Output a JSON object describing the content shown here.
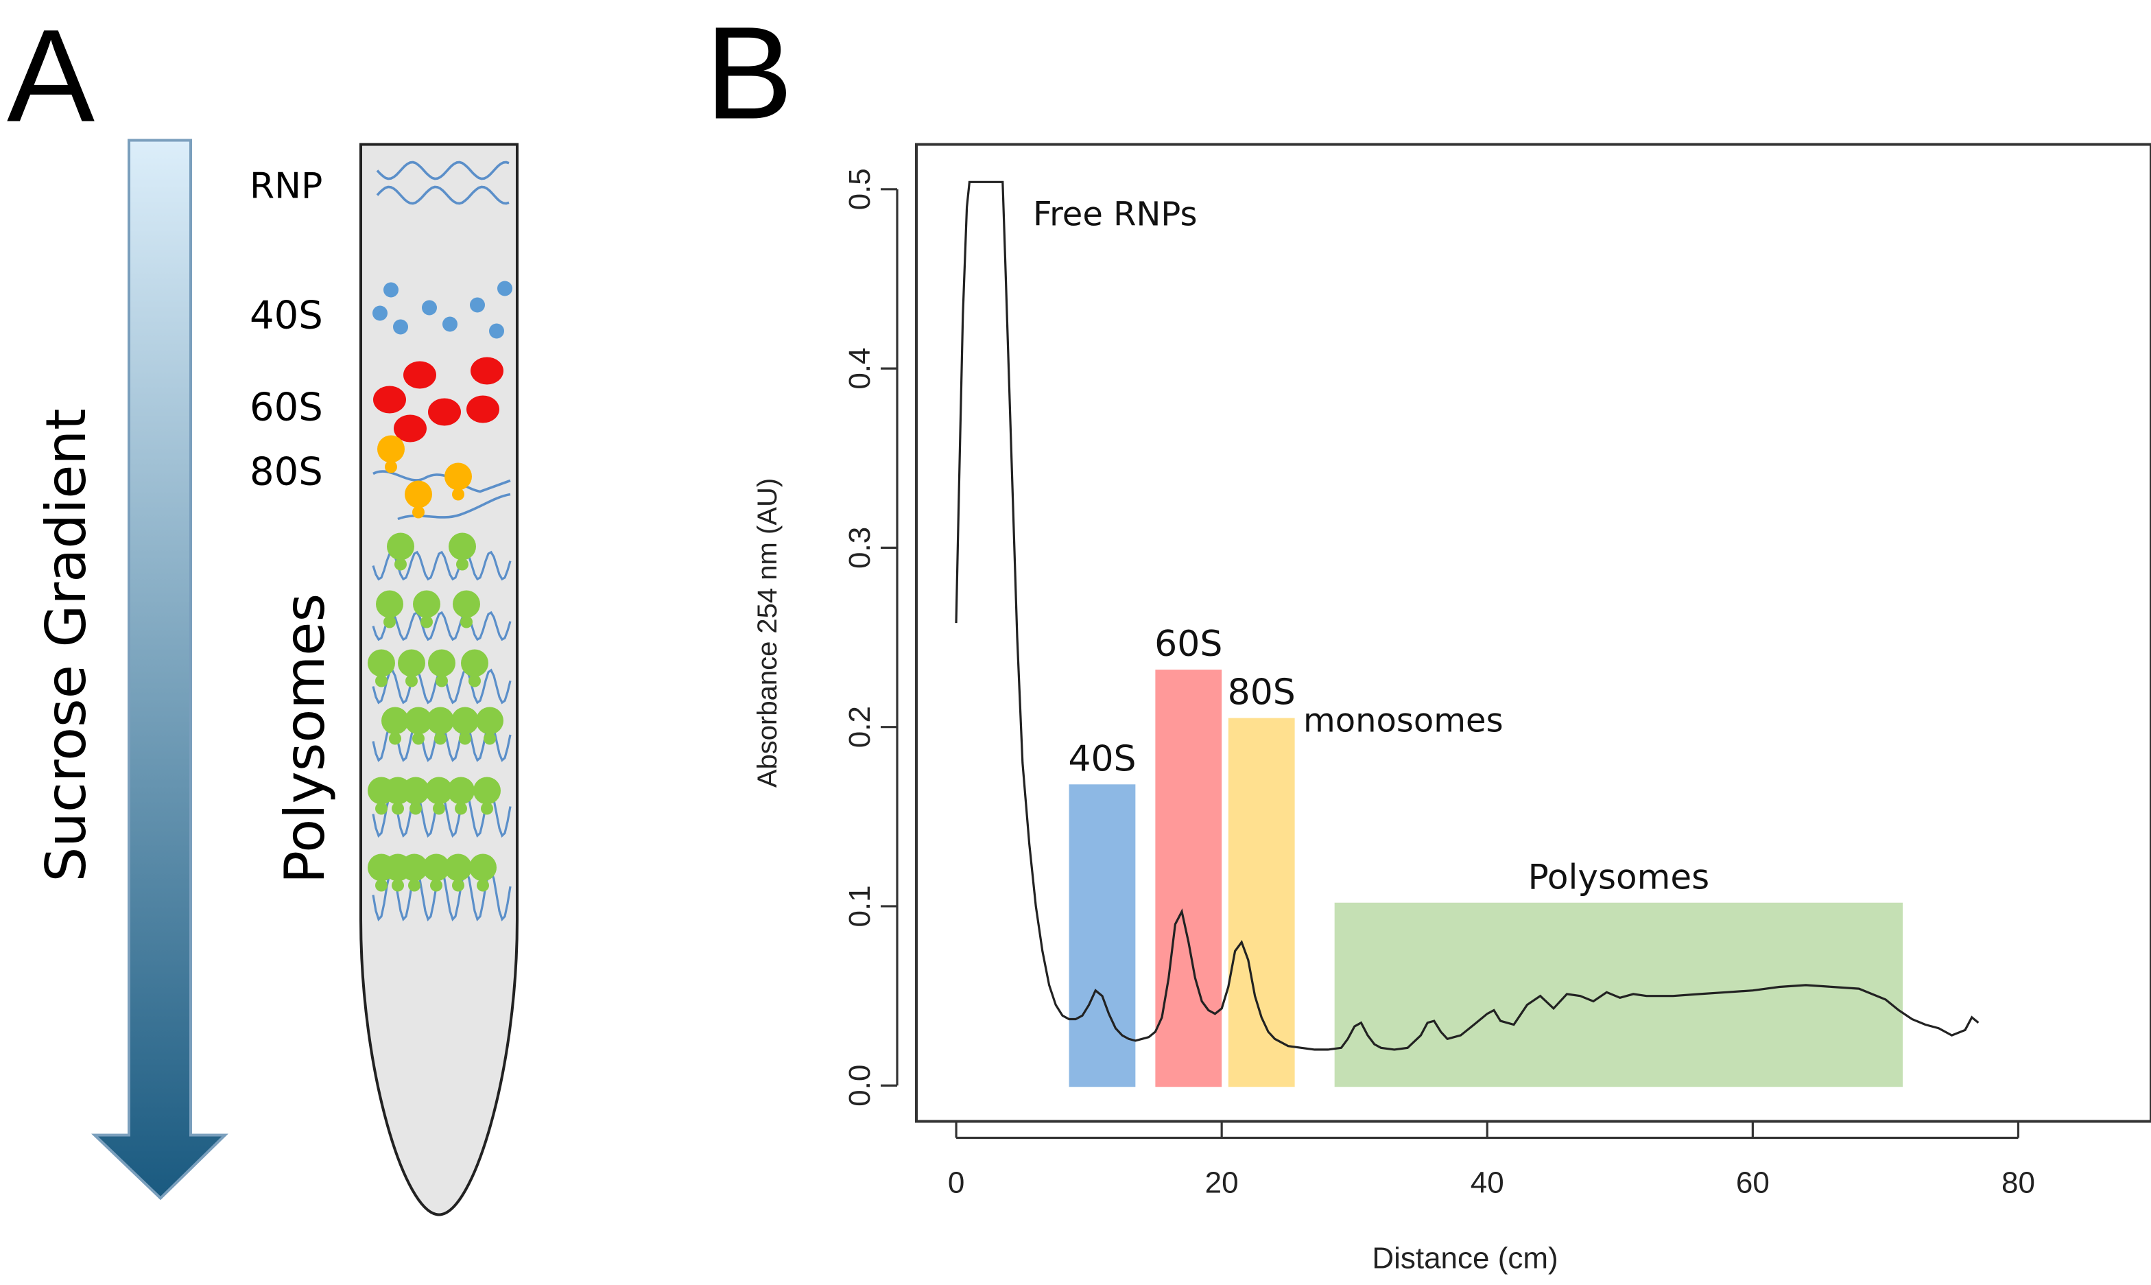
{
  "panel_a": {
    "label": "A",
    "gradient_label": "Sucrose Gradient",
    "polysomes_label": "Polysomes",
    "bands": [
      {
        "label": "RNP"
      },
      {
        "label": "40S"
      },
      {
        "label": "60S"
      },
      {
        "label": "80S"
      }
    ],
    "colors": {
      "arrow_top": "#dceefa",
      "arrow_bottom": "#1a5a80",
      "tube_fill": "#e6e6e6",
      "rna": "#5b8fc9",
      "subunit_40s": "#5b9bd5",
      "subunit_60s": "#ee1111",
      "monosome_80s": "#ffb300",
      "polysome": "#88cc44"
    }
  },
  "panel_b": {
    "label": "B",
    "chart_data": {
      "type": "line",
      "xlabel": "Distance (cm)",
      "ylabel": "Absorbance 254 nm (AU)",
      "xlim": [
        -3,
        90
      ],
      "ylim": [
        -0.02,
        0.525
      ],
      "xticks": [
        "0",
        "20",
        "40",
        "60",
        "80"
      ],
      "yticks": [
        "0.0",
        "0.1",
        "0.2",
        "0.3",
        "0.4",
        "0.5"
      ],
      "regions": [
        {
          "label": "40S",
          "x": [
            8.5,
            13.5
          ],
          "height": 0.168,
          "color": "#8db8e4"
        },
        {
          "label": "60S",
          "x": [
            15,
            20
          ],
          "height": 0.232,
          "color": "#ff9999"
        },
        {
          "label": "80S",
          "x": [
            20.5,
            25.5
          ],
          "height": 0.205,
          "color": "#ffe08f"
        },
        {
          "label": "Polysomes",
          "x": [
            28.5,
            71.3
          ],
          "height": 0.102,
          "color": "#c5e0b4"
        }
      ],
      "annotations": [
        {
          "text": "Free RNPs"
        },
        {
          "text": "monosomes"
        }
      ],
      "series": [
        {
          "line_color": "#222222",
          "x": [
            0,
            0.2,
            0.5,
            0.8,
            1.0,
            3.5,
            3.7,
            4.0,
            4.3,
            4.6,
            5.0,
            5.5,
            6.0,
            6.5,
            7.0,
            7.5,
            8.0,
            8.5,
            9.0,
            9.5,
            10.0,
            10.5,
            11.0,
            11.5,
            12.0,
            12.5,
            13.0,
            13.5,
            14.0,
            14.5,
            15.0,
            15.5,
            16.0,
            16.5,
            17.0,
            17.5,
            18.0,
            18.5,
            19.0,
            19.5,
            20.0,
            20.5,
            21.0,
            21.5,
            22.0,
            22.5,
            23.0,
            23.5,
            24.0,
            25.0,
            26.0,
            27.0,
            28.0,
            29.0,
            29.5,
            30.0,
            30.5,
            31.0,
            31.5,
            32.0,
            33.0,
            34.0,
            35.0,
            35.5,
            36.0,
            36.5,
            37.0,
            38.0,
            39.0,
            40.0,
            40.5,
            41.0,
            42.0,
            43.0,
            44.0,
            45.0,
            46.0,
            47.0,
            48.0,
            49.0,
            50.0,
            51.0,
            52.0,
            54.0,
            56.0,
            58.0,
            60.0,
            62.0,
            64.0,
            66.0,
            68.0,
            70.0,
            71.0,
            72.0,
            73.0,
            74.0,
            75.0,
            76.0,
            76.5,
            77.0
          ],
          "y": [
            0.258,
            0.33,
            0.43,
            0.49,
            0.504,
            0.504,
            0.46,
            0.39,
            0.32,
            0.25,
            0.18,
            0.135,
            0.1,
            0.075,
            0.056,
            0.045,
            0.039,
            0.037,
            0.037,
            0.039,
            0.045,
            0.053,
            0.05,
            0.04,
            0.032,
            0.028,
            0.026,
            0.025,
            0.026,
            0.027,
            0.03,
            0.038,
            0.06,
            0.09,
            0.097,
            0.08,
            0.06,
            0.047,
            0.042,
            0.04,
            0.043,
            0.055,
            0.075,
            0.08,
            0.07,
            0.05,
            0.038,
            0.03,
            0.026,
            0.022,
            0.021,
            0.02,
            0.02,
            0.021,
            0.026,
            0.033,
            0.035,
            0.028,
            0.023,
            0.021,
            0.02,
            0.021,
            0.028,
            0.035,
            0.036,
            0.03,
            0.026,
            0.028,
            0.034,
            0.04,
            0.042,
            0.036,
            0.034,
            0.045,
            0.05,
            0.043,
            0.051,
            0.05,
            0.047,
            0.052,
            0.049,
            0.051,
            0.05,
            0.05,
            0.051,
            0.052,
            0.053,
            0.055,
            0.056,
            0.055,
            0.054,
            0.048,
            0.042,
            0.037,
            0.034,
            0.032,
            0.028,
            0.031,
            0.038,
            0.035
          ]
        }
      ]
    }
  }
}
